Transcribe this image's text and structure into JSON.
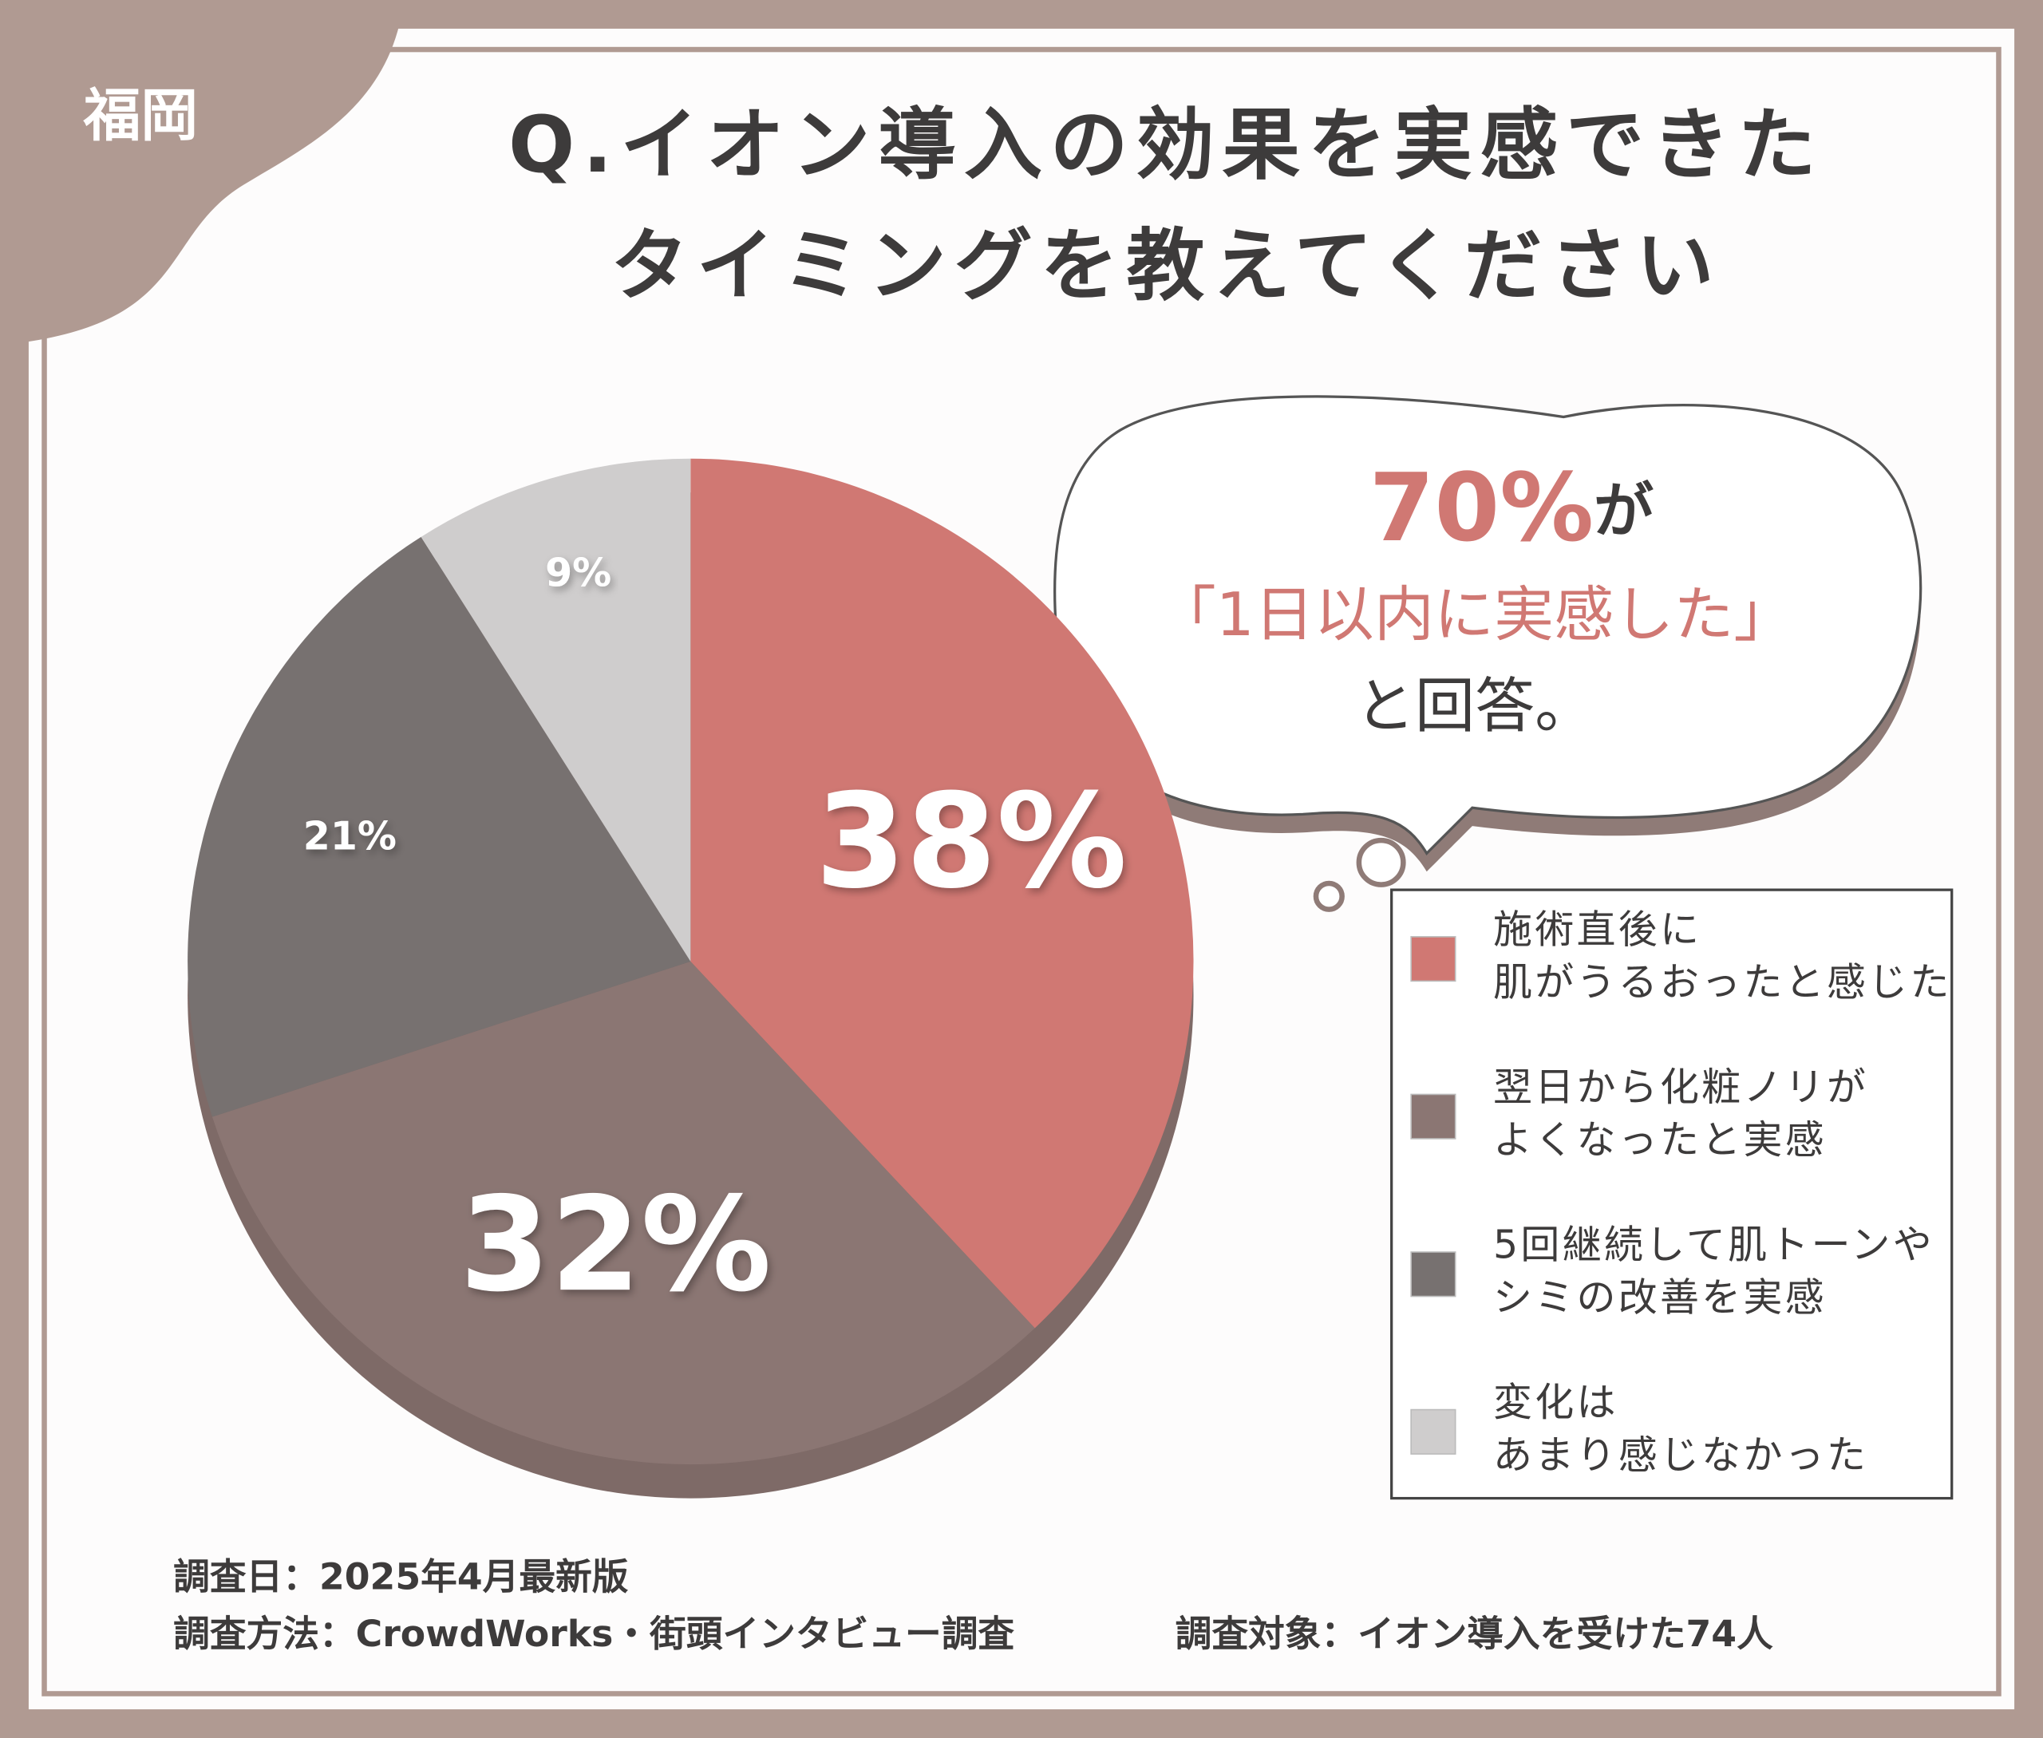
{
  "chart_data": {
    "type": "pie",
    "tag": "福岡",
    "title": "Q.イオン導入の効果を実感できた\nタイミングを教えてください",
    "categories": [
      "施術直後に\n肌がうるおったと感じた",
      "翌日から化粧ノリが\nよくなったと実感",
      "5回継続して肌トーンや\nシミの改善を実感",
      "変化は\nあまり感じなかった"
    ],
    "values": [
      38,
      32,
      21,
      9
    ],
    "value_labels": [
      "38%",
      "32%",
      "21%",
      "9%"
    ],
    "colors": [
      "#d07873",
      "#8b7673",
      "#777170",
      "#cfcdcd"
    ],
    "callout": {
      "highlight": "70%",
      "suffix": "が",
      "quote": "「1日以内に実感した」",
      "end": "と回答。"
    },
    "footnotes": [
      "調査日：2025年4月最新版",
      "調査方法：CrowdWorks・街頭インタビュー調査",
      "調査対象：イオン導入を受けた74人"
    ]
  }
}
